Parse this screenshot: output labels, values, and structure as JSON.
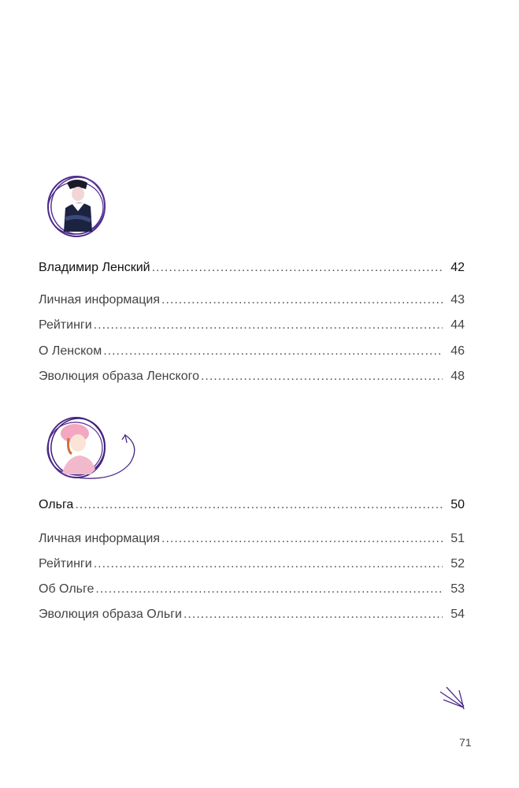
{
  "sections": [
    {
      "title": {
        "label": "Владимир Ленский",
        "page": "42"
      },
      "items": [
        {
          "label": "Личная информация",
          "page": "43"
        },
        {
          "label": "Рейтинги",
          "page": "44"
        },
        {
          "label": "О Ленском",
          "page": "46"
        },
        {
          "label": "Эволюция образа Ленского",
          "page": "48"
        }
      ]
    },
    {
      "title": {
        "label": "Ольга",
        "page": "50"
      },
      "items": [
        {
          "label": "Личная информация",
          "page": "51"
        },
        {
          "label": "Рейтинги",
          "page": "52"
        },
        {
          "label": "Об Ольге",
          "page": "53"
        },
        {
          "label": "Эволюция образа Ольги",
          "page": "54"
        }
      ]
    }
  ],
  "page_number": "71",
  "colors": {
    "accent": "#4b2a8a",
    "text": "#111111",
    "subtext": "#444444"
  }
}
